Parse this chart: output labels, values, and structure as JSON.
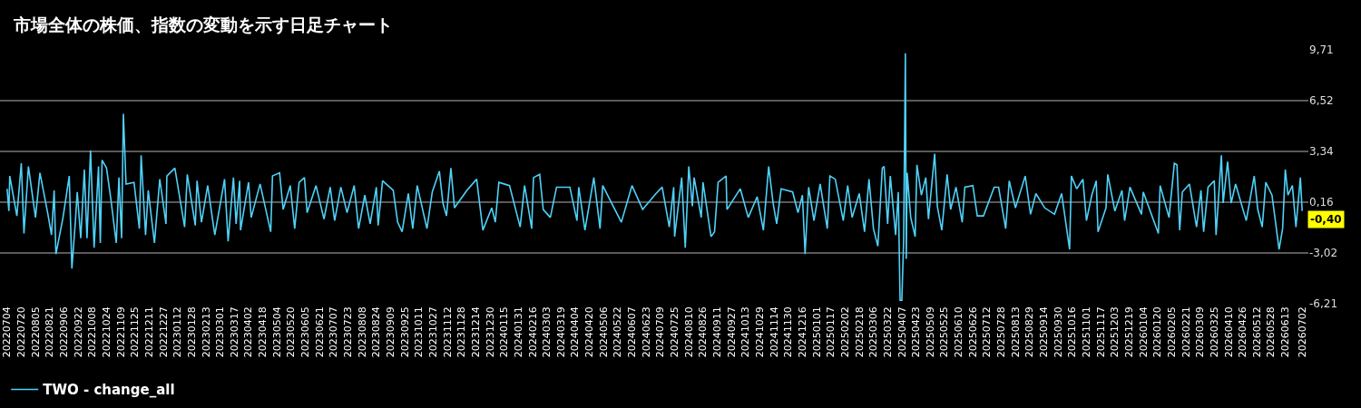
{
  "chart_data": {
    "type": "line",
    "title": "市場全体の株価、指数の変動を示す日足チャート",
    "x": [
      "2022-07-04",
      "2022-07-06",
      "2022-07-07",
      "2022-07-15",
      "2022-07-20",
      "2022-07-23",
      "2022-07-28",
      "2022-08-05",
      "2022-08-10",
      "2022-08-19",
      "2022-08-23",
      "2022-08-26",
      "2022-08-28",
      "2022-09-05",
      "2022-09-12",
      "2022-09-15",
      "2022-09-19",
      "2022-09-21",
      "2022-09-25",
      "2022-09-29",
      "2022-10-02",
      "2022-10-06",
      "2022-10-10",
      "2022-10-15",
      "2022-10-17",
      "2022-10-19",
      "2022-10-24",
      "2022-10-29",
      "2022-11-04",
      "2022-11-07",
      "2022-11-10",
      "2022-11-12",
      "2022-11-15",
      "2022-11-24",
      "2022-11-30",
      "2022-12-02",
      "2022-12-07",
      "2022-12-10",
      "2022-12-17",
      "2022-12-23",
      "2022-12-30",
      "2022-12-31",
      "2023-01-09",
      "2023-01-20",
      "2023-01-23",
      "2023-02-01",
      "2023-02-03",
      "2023-02-08",
      "2023-02-15",
      "2023-02-23",
      "2023-03-06",
      "2023-03-10",
      "2023-03-16",
      "2023-03-19",
      "2023-03-23",
      "2023-03-24",
      "2023-04-02",
      "2023-04-05",
      "2023-04-15",
      "2023-04-27",
      "2023-04-29",
      "2023-05-07",
      "2023-05-11",
      "2023-05-19",
      "2023-05-24",
      "2023-05-29",
      "2023-06-04",
      "2023-06-07",
      "2023-06-17",
      "2023-06-26",
      "2023-07-03",
      "2023-07-08",
      "2023-07-15",
      "2023-07-22",
      "2023-07-30",
      "2023-08-04",
      "2023-08-11",
      "2023-08-17",
      "2023-08-24",
      "2023-08-26",
      "2023-08-31",
      "2023-09-12",
      "2023-09-17",
      "2023-09-22",
      "2023-09-29",
      "2023-10-04",
      "2023-10-09",
      "2023-10-20",
      "2023-10-26",
      "2023-11-03",
      "2023-11-07",
      "2023-11-11",
      "2023-11-16",
      "2023-11-20",
      "2023-12-04",
      "2023-12-15",
      "2023-12-22",
      "2024-01-01",
      "2024-01-05",
      "2024-01-09",
      "2024-01-21",
      "2024-02-02",
      "2024-02-07",
      "2024-02-15",
      "2024-02-17",
      "2024-02-24",
      "2024-02-28",
      "2024-03-07",
      "2024-03-14",
      "2024-03-29",
      "2024-04-06",
      "2024-04-08",
      "2024-04-15",
      "2024-04-25",
      "2024-05-02",
      "2024-05-05",
      "2024-05-26",
      "2024-06-07",
      "2024-06-19",
      "2024-07-04",
      "2024-07-11",
      "2024-07-19",
      "2024-07-24",
      "2024-07-25",
      "2024-08-02",
      "2024-08-06",
      "2024-08-10",
      "2024-08-14",
      "2024-08-16",
      "2024-08-24",
      "2024-08-26",
      "2024-09-04",
      "2024-09-08",
      "2024-09-12",
      "2024-09-21",
      "2024-09-22",
      "2024-10-07",
      "2024-10-16",
      "2024-10-26",
      "2024-11-02",
      "2024-11-08",
      "2024-11-13",
      "2024-11-17",
      "2024-11-22",
      "2024-12-05",
      "2024-12-11",
      "2024-12-16",
      "2024-12-19",
      "2024-12-23",
      "2024-12-29",
      "2025-01-05",
      "2025-01-13",
      "2025-01-16",
      "2025-01-22",
      "2025-01-31",
      "2025-02-05",
      "2025-02-10",
      "2025-02-18",
      "2025-02-24",
      "2025-03-01",
      "2025-03-06",
      "2025-03-11",
      "2025-03-16",
      "2025-03-18",
      "2025-03-22",
      "2025-03-25",
      "2025-03-31",
      "2025-04-03",
      "2025-04-05",
      "2025-04-07",
      "2025-04-09",
      "2025-04-11",
      "2025-04-12",
      "2025-04-13",
      "2025-04-17",
      "2025-04-22",
      "2025-04-24",
      "2025-04-29",
      "2025-05-04",
      "2025-05-07",
      "2025-05-14",
      "2025-05-17",
      "2025-05-22",
      "2025-05-28",
      "2025-06-01",
      "2025-06-07",
      "2025-06-14",
      "2025-06-17",
      "2025-06-26",
      "2025-07-01",
      "2025-07-08",
      "2025-07-20",
      "2025-07-25",
      "2025-08-02",
      "2025-08-06",
      "2025-08-13",
      "2025-08-24",
      "2025-08-30",
      "2025-09-05",
      "2025-09-15",
      "2025-09-26",
      "2025-10-04",
      "2025-10-13",
      "2025-10-15",
      "2025-10-21",
      "2025-10-28",
      "2025-11-01",
      "2025-11-07",
      "2025-11-12",
      "2025-11-14",
      "2025-11-23",
      "2025-11-25",
      "2025-12-03",
      "2025-12-11",
      "2025-12-14",
      "2025-12-20",
      "2026-01-02",
      "2026-01-04",
      "2026-01-21",
      "2026-01-23",
      "2026-02-02",
      "2026-02-08",
      "2026-02-11",
      "2026-02-14",
      "2026-02-17",
      "2026-02-25",
      "2026-03-05",
      "2026-03-10",
      "2026-03-13",
      "2026-03-18",
      "2026-03-25",
      "2026-03-27",
      "2026-04-02",
      "2026-04-04",
      "2026-04-09",
      "2026-04-13",
      "2026-04-18",
      "2026-04-30",
      "2026-05-09",
      "2026-05-13",
      "2026-05-18",
      "2026-05-22",
      "2026-05-29",
      "2026-06-06",
      "2026-06-10",
      "2026-06-13",
      "2026-06-16",
      "2026-06-21",
      "2026-06-25",
      "2026-06-30",
      "2026-07-02"
    ],
    "series": [
      {
        "name": "TWO - change_all",
        "color": "#4fd1f7",
        "values": [
          1.0,
          -0.4,
          1.8,
          -0.7,
          2.6,
          -1.8,
          2.4,
          -0.8,
          2.0,
          -0.6,
          -1.9,
          0.9,
          -3.1,
          -0.8,
          1.8,
          -4.0,
          -1.0,
          0.8,
          -2.1,
          2.2,
          -2.1,
          3.4,
          -2.7,
          2.4,
          -2.4,
          2.8,
          2.3,
          0.3,
          -2.4,
          1.7,
          -2.1,
          5.7,
          1.3,
          1.4,
          -1.5,
          3.1,
          -1.9,
          0.9,
          -2.4,
          1.6,
          -1.2,
          1.8,
          2.3,
          -1.4,
          1.9,
          -1.3,
          1.5,
          -1.1,
          1.2,
          -1.9,
          1.6,
          -2.3,
          1.7,
          -1.2,
          1.5,
          -1.6,
          1.4,
          -0.8,
          1.3,
          -1.7,
          1.8,
          2.0,
          -0.3,
          1.2,
          -1.5,
          1.4,
          1.7,
          -0.5,
          1.2,
          -0.9,
          1.1,
          -1.0,
          1.1,
          -0.5,
          1.2,
          -1.5,
          0.6,
          -1.2,
          1.1,
          -1.3,
          1.5,
          0.9,
          -1.1,
          -1.7,
          0.7,
          -1.5,
          1.2,
          -1.5,
          0.8,
          2.1,
          0.1,
          -0.7,
          2.3,
          -0.2,
          0.9,
          1.6,
          -1.6,
          -0.2,
          -1.1,
          1.4,
          1.2,
          -1.4,
          1.2,
          -1.5,
          1.7,
          1.9,
          -0.3,
          -0.8,
          1.1,
          1.1,
          -1.0,
          1.1,
          -1.6,
          1.7,
          -1.5,
          1.2,
          -1.1,
          1.2,
          -0.3,
          0.7,
          1.1,
          -1.4,
          1.1,
          -2.0,
          1.7,
          -2.7,
          2.4,
          -0.1,
          1.7,
          -0.8,
          1.4,
          -2.0,
          -1.7,
          1.4,
          1.8,
          -0.3,
          1.0,
          -0.8,
          0.5,
          -1.6,
          2.4,
          0.1,
          -1.2,
          1.0,
          0.8,
          -0.5,
          0.6,
          -3.1,
          1.1,
          -1.0,
          1.3,
          -1.5,
          1.8,
          1.6,
          -1.0,
          1.2,
          -0.8,
          0.7,
          -1.7,
          1.6,
          -1.5,
          -2.6,
          2.3,
          2.4,
          -1.2,
          1.8,
          -1.9,
          0.8,
          -6.0,
          -6.0,
          -2.3,
          9.5,
          -3.4,
          2.0,
          -0.8,
          -2.0,
          2.5,
          0.6,
          1.7,
          -0.9,
          3.2,
          -0.1,
          -1.6,
          1.9,
          -0.3,
          1.1,
          -1.1,
          1.1,
          1.2,
          -0.7,
          -0.7,
          1.1,
          1.1,
          -1.5,
          1.5,
          -0.2,
          1.8,
          -0.6,
          0.7,
          -0.2,
          -0.6,
          0.7,
          -2.8,
          1.8,
          1.0,
          1.6,
          -1.0,
          0.6,
          1.5,
          -1.7,
          -0.2,
          1.9,
          -0.4,
          0.9,
          -1.0,
          1.1,
          -0.6,
          0.8,
          -1.8,
          1.2,
          -0.8,
          2.6,
          2.5,
          -1.6,
          0.8,
          1.3,
          -1.4,
          0.9,
          -1.7,
          1.1,
          1.5,
          -1.9,
          3.1,
          0.1,
          2.7,
          0.1,
          1.3,
          -1.0,
          1.8,
          -0.3,
          -1.4,
          1.4,
          0.6,
          -2.8,
          -1.5,
          2.2,
          0.6,
          1.2,
          -1.4,
          1.7,
          -0.4
        ]
      }
    ],
    "xlim": [
      "2022-06-26",
      "2026-07-09"
    ],
    "xticks": [
      {
        "value": "2022-07-04",
        "label": "20220704"
      },
      {
        "value": "2022-07-20",
        "label": "20220720"
      },
      {
        "value": "2022-08-05",
        "label": "20220805"
      },
      {
        "value": "2022-08-21",
        "label": "20220821"
      },
      {
        "value": "2022-09-06",
        "label": "20220906"
      },
      {
        "value": "2022-09-22",
        "label": "20220922"
      },
      {
        "value": "2022-10-08",
        "label": "20221008"
      },
      {
        "value": "2022-10-24",
        "label": "20221024"
      },
      {
        "value": "2022-11-09",
        "label": "20221109"
      },
      {
        "value": "2022-11-25",
        "label": "20221125"
      },
      {
        "value": "2022-12-11",
        "label": "20221211"
      },
      {
        "value": "2022-12-27",
        "label": "20221227"
      },
      {
        "value": "2023-01-12",
        "label": "20230112"
      },
      {
        "value": "2023-01-28",
        "label": "20230128"
      },
      {
        "value": "2023-02-13",
        "label": "20230213"
      },
      {
        "value": "2023-03-01",
        "label": "20230301"
      },
      {
        "value": "2023-03-17",
        "label": "20230317"
      },
      {
        "value": "2023-04-02",
        "label": "20230402"
      },
      {
        "value": "2023-04-18",
        "label": "20230418"
      },
      {
        "value": "2023-05-04",
        "label": "20230504"
      },
      {
        "value": "2023-05-20",
        "label": "20230520"
      },
      {
        "value": "2023-06-05",
        "label": "20230605"
      },
      {
        "value": "2023-06-21",
        "label": "20230621"
      },
      {
        "value": "2023-07-07",
        "label": "20230707"
      },
      {
        "value": "2023-07-23",
        "label": "20230723"
      },
      {
        "value": "2023-08-08",
        "label": "20230808"
      },
      {
        "value": "2023-08-24",
        "label": "20230824"
      },
      {
        "value": "2023-09-09",
        "label": "20230909"
      },
      {
        "value": "2023-09-25",
        "label": "20230925"
      },
      {
        "value": "2023-10-11",
        "label": "20231011"
      },
      {
        "value": "2023-10-27",
        "label": "20231027"
      },
      {
        "value": "2023-11-12",
        "label": "20231112"
      },
      {
        "value": "2023-11-28",
        "label": "20231128"
      },
      {
        "value": "2023-12-14",
        "label": "20231214"
      },
      {
        "value": "2023-12-30",
        "label": "20231230"
      },
      {
        "value": "2024-01-15",
        "label": "20240115"
      },
      {
        "value": "2024-01-31",
        "label": "20240131"
      },
      {
        "value": "2024-02-16",
        "label": "20240216"
      },
      {
        "value": "2024-03-03",
        "label": "20240303"
      },
      {
        "value": "2024-03-19",
        "label": "20240319"
      },
      {
        "value": "2024-04-04",
        "label": "20240404"
      },
      {
        "value": "2024-04-20",
        "label": "20240420"
      },
      {
        "value": "2024-05-06",
        "label": "20240506"
      },
      {
        "value": "2024-05-22",
        "label": "20240522"
      },
      {
        "value": "2024-06-07",
        "label": "20240607"
      },
      {
        "value": "2024-06-23",
        "label": "20240623"
      },
      {
        "value": "2024-07-09",
        "label": "20240709"
      },
      {
        "value": "2024-07-25",
        "label": "20240725"
      },
      {
        "value": "2024-08-10",
        "label": "20240810"
      },
      {
        "value": "2024-08-26",
        "label": "20240826"
      },
      {
        "value": "2024-09-11",
        "label": "20240911"
      },
      {
        "value": "2024-09-27",
        "label": "20240927"
      },
      {
        "value": "2024-10-13",
        "label": "20241013"
      },
      {
        "value": "2024-10-29",
        "label": "20241029"
      },
      {
        "value": "2024-11-14",
        "label": "20241114"
      },
      {
        "value": "2024-11-30",
        "label": "20241130"
      },
      {
        "value": "2024-12-16",
        "label": "20241216"
      },
      {
        "value": "2025-01-01",
        "label": "20250101"
      },
      {
        "value": "2025-01-17",
        "label": "20250117"
      },
      {
        "value": "2025-02-02",
        "label": "20250202"
      },
      {
        "value": "2025-02-18",
        "label": "20250218"
      },
      {
        "value": "2025-03-06",
        "label": "20250306"
      },
      {
        "value": "2025-03-22",
        "label": "20250322"
      },
      {
        "value": "2025-04-07",
        "label": "20250407"
      },
      {
        "value": "2025-04-23",
        "label": "20250423"
      },
      {
        "value": "2025-05-09",
        "label": "20250509"
      },
      {
        "value": "2025-05-25",
        "label": "20250525"
      },
      {
        "value": "2025-06-10",
        "label": "20250610"
      },
      {
        "value": "2025-06-26",
        "label": "20250626"
      },
      {
        "value": "2025-07-12",
        "label": "20250712"
      },
      {
        "value": "2025-07-28",
        "label": "20250728"
      },
      {
        "value": "2025-08-13",
        "label": "20250813"
      },
      {
        "value": "2025-08-29",
        "label": "20250829"
      },
      {
        "value": "2025-09-14",
        "label": "20250914"
      },
      {
        "value": "2025-09-30",
        "label": "20250930"
      },
      {
        "value": "2025-10-16",
        "label": "20251016"
      },
      {
        "value": "2025-11-01",
        "label": "20251101"
      },
      {
        "value": "2025-11-17",
        "label": "20251117"
      },
      {
        "value": "2025-12-03",
        "label": "20251203"
      },
      {
        "value": "2025-12-19",
        "label": "20251219"
      },
      {
        "value": "2026-01-04",
        "label": "20260104"
      },
      {
        "value": "2026-01-20",
        "label": "20260120"
      },
      {
        "value": "2026-02-05",
        "label": "20260205"
      },
      {
        "value": "2026-02-21",
        "label": "20260221"
      },
      {
        "value": "2026-03-09",
        "label": "20260309"
      },
      {
        "value": "2026-03-25",
        "label": "20260325"
      },
      {
        "value": "2026-04-10",
        "label": "20260410"
      },
      {
        "value": "2026-04-26",
        "label": "20260426"
      },
      {
        "value": "2026-05-12",
        "label": "20260512"
      },
      {
        "value": "2026-05-28",
        "label": "20260528"
      },
      {
        "value": "2026-06-13",
        "label": "20260613"
      },
      {
        "value": "2026-07-02",
        "label": "20260702"
      }
    ],
    "ylim": [
      -6.21,
      9.71
    ],
    "yticks": [
      {
        "value": -6.21,
        "label": "-6,21"
      },
      {
        "value": -3.02,
        "label": "-3,02"
      },
      {
        "value": 0.16,
        "label": "0,16"
      },
      {
        "value": 3.34,
        "label": "3,34"
      },
      {
        "value": 6.52,
        "label": "6,52"
      },
      {
        "value": 9.71,
        "label": "9,71"
      }
    ],
    "annotations": [
      {
        "text": "-0,40",
        "x": "2026-07-02",
        "y": -0.4
      }
    ],
    "grid": "y",
    "legend": "bottom left",
    "line_style": "solid"
  }
}
